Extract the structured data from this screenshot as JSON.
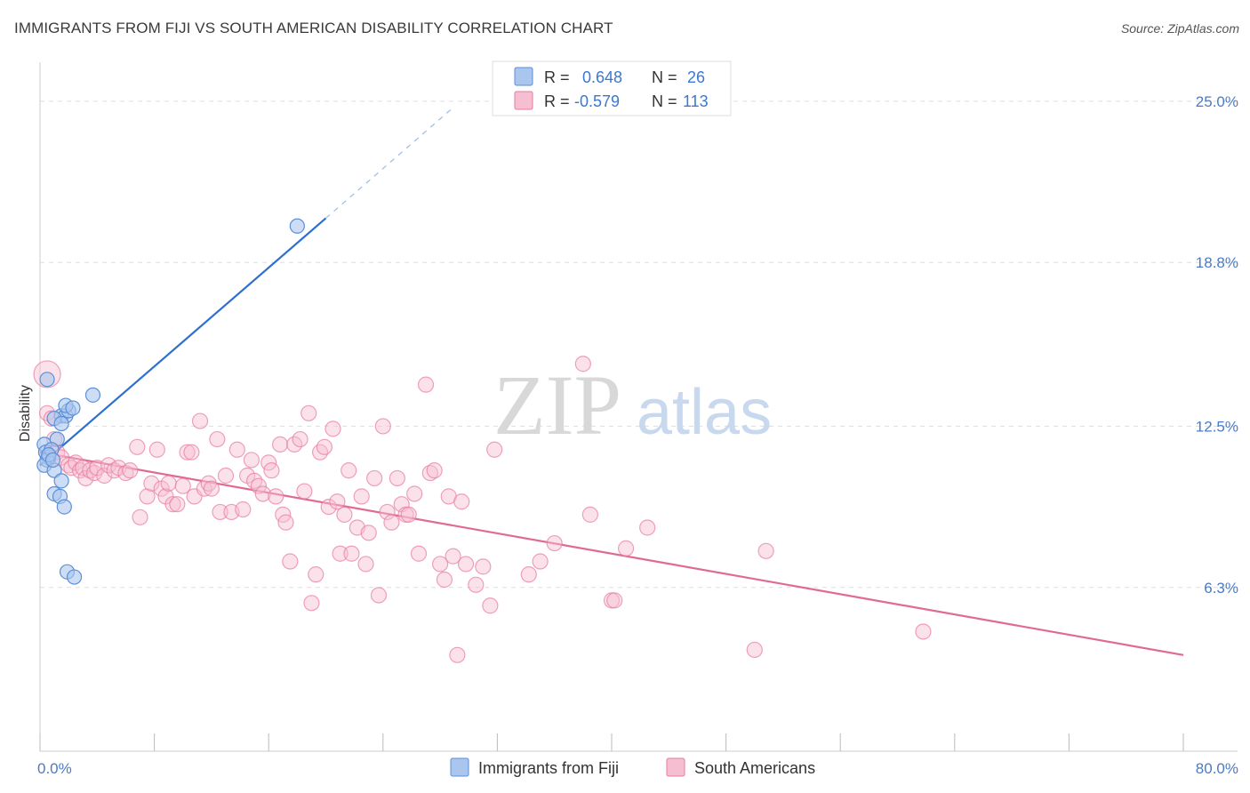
{
  "title": "IMMIGRANTS FROM FIJI VS SOUTH AMERICAN DISABILITY CORRELATION CHART",
  "source": "Source: ZipAtlas.com",
  "watermark": {
    "zip": "ZIP",
    "atlas": "atlas"
  },
  "colors": {
    "fiji": "#5b8fd8",
    "fiji_fill": "#aac6ee",
    "south": "#e87aa0",
    "south_fill": "#f6bfd1",
    "axis_label": "#4a7bc8",
    "grid": "#dddddd"
  },
  "legend": {
    "rows": [
      {
        "r_label": "R =",
        "r_value": "0.648",
        "n_label": "N =",
        "n_value": "26"
      },
      {
        "r_label": "R =",
        "r_value": "-0.579",
        "n_label": "N =",
        "n_value": "113"
      }
    ]
  },
  "bottom_legend": [
    "Immigrants from Fiji",
    "South Americans"
  ],
  "chart_data": {
    "type": "scatter",
    "title": "IMMIGRANTS FROM FIJI VS SOUTH AMERICAN DISABILITY CORRELATION CHART",
    "xlabel": "",
    "ylabel": "Disability",
    "xlim": [
      0,
      80
    ],
    "ylim": [
      0,
      26.5
    ],
    "x_tick_labels": [
      "0.0%",
      "80.0%"
    ],
    "y_ticks": [
      6.3,
      12.5,
      18.8,
      25.0
    ],
    "y_tick_labels": [
      "6.3%",
      "12.5%",
      "18.8%",
      "25.0%"
    ],
    "grid": "horizontal dashed",
    "legend_position": "top-center",
    "series": [
      {
        "name": "Immigrants from Fiji",
        "r": 0.648,
        "n": 26,
        "trend": {
          "x0": 0,
          "y0": 11.0,
          "x1": 20.0,
          "y1": 20.5,
          "dash_to_x": 29.0,
          "dash_to_y": 24.8
        },
        "points": [
          [
            0.5,
            14.3
          ],
          [
            0.3,
            11.8
          ],
          [
            0.4,
            11.5
          ],
          [
            0.6,
            11.3
          ],
          [
            0.5,
            11.2
          ],
          [
            0.3,
            11.0
          ],
          [
            1.2,
            12.0
          ],
          [
            1.5,
            12.9
          ],
          [
            1.8,
            12.9
          ],
          [
            2.0,
            13.1
          ],
          [
            1.8,
            13.3
          ],
          [
            2.3,
            13.2
          ],
          [
            1.0,
            12.8
          ],
          [
            1.5,
            12.6
          ],
          [
            3.7,
            13.7
          ],
          [
            1.0,
            10.8
          ],
          [
            1.5,
            10.4
          ],
          [
            1.0,
            9.9
          ],
          [
            1.4,
            9.8
          ],
          [
            1.7,
            9.4
          ],
          [
            1.9,
            6.9
          ],
          [
            2.4,
            6.7
          ],
          [
            18.0,
            20.2
          ],
          [
            0.8,
            11.6
          ],
          [
            0.6,
            11.4
          ],
          [
            0.9,
            11.2
          ]
        ]
      },
      {
        "name": "South Americans",
        "r": -0.579,
        "n": 113,
        "trend": {
          "x0": 0,
          "y0": 11.5,
          "x1": 80,
          "y1": 3.7
        },
        "points": [
          [
            0.5,
            14.5
          ],
          [
            0.5,
            13.0
          ],
          [
            1.0,
            12.0
          ],
          [
            1.2,
            11.5
          ],
          [
            1.5,
            11.3
          ],
          [
            2.0,
            11.0
          ],
          [
            2.2,
            10.9
          ],
          [
            2.5,
            11.1
          ],
          [
            2.8,
            10.8
          ],
          [
            3.0,
            10.9
          ],
          [
            3.2,
            10.5
          ],
          [
            3.5,
            10.8
          ],
          [
            3.8,
            10.7
          ],
          [
            4.0,
            10.9
          ],
          [
            4.5,
            10.6
          ],
          [
            4.8,
            11.0
          ],
          [
            5.2,
            10.8
          ],
          [
            5.5,
            10.9
          ],
          [
            6.0,
            10.7
          ],
          [
            6.3,
            10.8
          ],
          [
            6.8,
            11.7
          ],
          [
            7.0,
            9.0
          ],
          [
            7.5,
            9.8
          ],
          [
            7.8,
            10.3
          ],
          [
            8.2,
            11.6
          ],
          [
            8.5,
            10.1
          ],
          [
            8.8,
            9.8
          ],
          [
            9.0,
            10.3
          ],
          [
            9.3,
            9.5
          ],
          [
            9.6,
            9.5
          ],
          [
            10.0,
            10.2
          ],
          [
            10.3,
            11.5
          ],
          [
            10.6,
            11.5
          ],
          [
            10.8,
            9.8
          ],
          [
            11.2,
            12.7
          ],
          [
            11.5,
            10.1
          ],
          [
            11.8,
            10.3
          ],
          [
            12.0,
            10.1
          ],
          [
            12.4,
            12.0
          ],
          [
            12.6,
            9.2
          ],
          [
            13.0,
            10.6
          ],
          [
            13.4,
            9.2
          ],
          [
            13.8,
            11.6
          ],
          [
            14.2,
            9.3
          ],
          [
            14.5,
            10.6
          ],
          [
            14.8,
            11.2
          ],
          [
            15.0,
            10.4
          ],
          [
            15.3,
            10.2
          ],
          [
            15.6,
            9.9
          ],
          [
            16.0,
            11.1
          ],
          [
            16.2,
            10.8
          ],
          [
            16.5,
            9.8
          ],
          [
            16.8,
            11.8
          ],
          [
            17.0,
            9.1
          ],
          [
            17.2,
            8.8
          ],
          [
            17.5,
            7.3
          ],
          [
            17.8,
            11.8
          ],
          [
            18.2,
            12.0
          ],
          [
            18.5,
            10.0
          ],
          [
            18.8,
            13.0
          ],
          [
            19.0,
            5.7
          ],
          [
            19.3,
            6.8
          ],
          [
            19.6,
            11.5
          ],
          [
            19.9,
            11.7
          ],
          [
            20.2,
            9.4
          ],
          [
            20.5,
            12.4
          ],
          [
            20.8,
            9.6
          ],
          [
            21.0,
            7.6
          ],
          [
            21.3,
            9.1
          ],
          [
            21.6,
            10.8
          ],
          [
            21.8,
            7.6
          ],
          [
            22.2,
            8.6
          ],
          [
            22.5,
            9.8
          ],
          [
            22.8,
            7.2
          ],
          [
            23.0,
            8.4
          ],
          [
            23.4,
            10.5
          ],
          [
            23.7,
            6.0
          ],
          [
            24.0,
            12.5
          ],
          [
            24.3,
            9.2
          ],
          [
            24.6,
            8.8
          ],
          [
            25.0,
            10.5
          ],
          [
            25.3,
            9.5
          ],
          [
            25.6,
            9.1
          ],
          [
            25.8,
            9.1
          ],
          [
            26.2,
            9.9
          ],
          [
            26.5,
            7.6
          ],
          [
            27.0,
            14.1
          ],
          [
            27.3,
            10.7
          ],
          [
            27.6,
            10.8
          ],
          [
            28.0,
            7.2
          ],
          [
            28.3,
            6.6
          ],
          [
            28.6,
            9.8
          ],
          [
            28.9,
            7.5
          ],
          [
            29.2,
            3.7
          ],
          [
            29.5,
            9.6
          ],
          [
            29.8,
            7.2
          ],
          [
            30.5,
            6.4
          ],
          [
            31.0,
            7.1
          ],
          [
            31.5,
            5.6
          ],
          [
            31.8,
            11.6
          ],
          [
            34.2,
            6.8
          ],
          [
            35.0,
            7.3
          ],
          [
            36.0,
            8.0
          ],
          [
            38.0,
            14.9
          ],
          [
            38.5,
            9.1
          ],
          [
            40.0,
            5.8
          ],
          [
            40.2,
            5.8
          ],
          [
            41.0,
            7.8
          ],
          [
            42.5,
            8.6
          ],
          [
            50.0,
            3.9
          ],
          [
            50.8,
            7.7
          ],
          [
            61.8,
            4.6
          ],
          [
            0.8,
            12.8
          ]
        ]
      }
    ]
  }
}
